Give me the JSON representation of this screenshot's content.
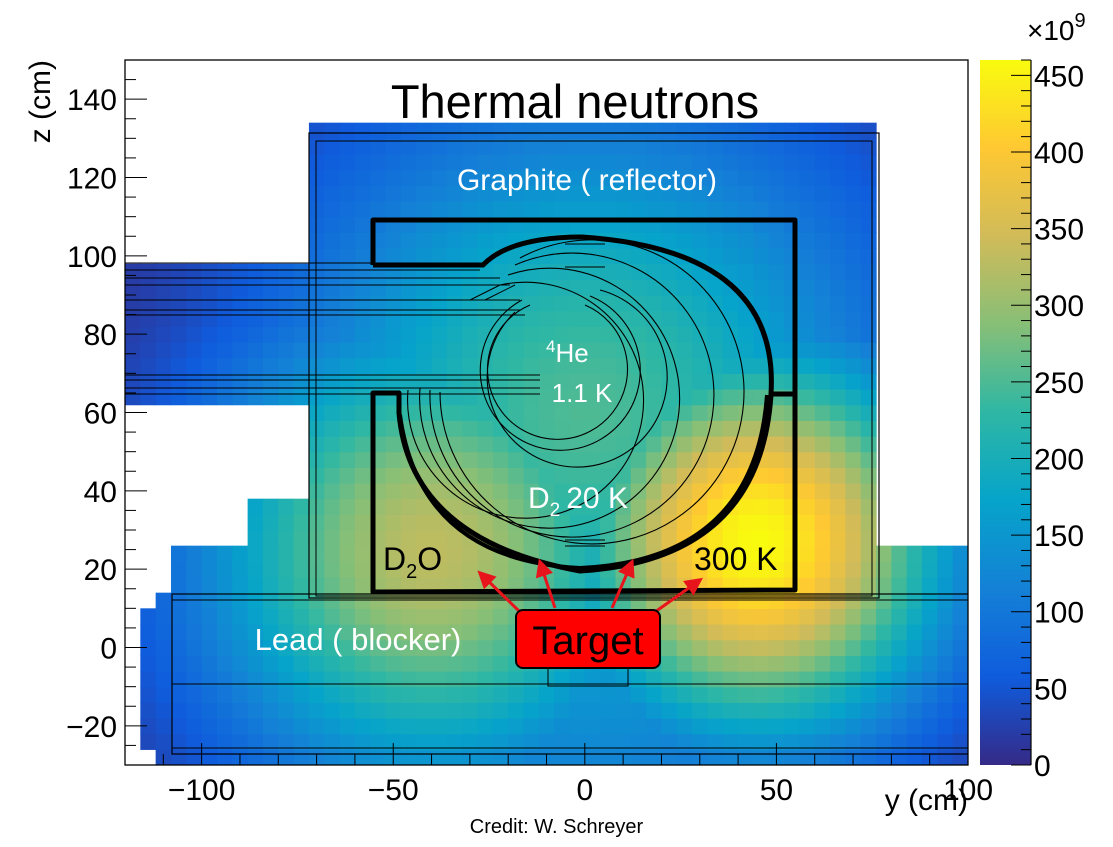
{
  "chart_data": {
    "type": "heatmap",
    "title": "Thermal neutrons",
    "xlabel": "y (cm)",
    "ylabel": "z (cm)",
    "xlim": [
      -120,
      100
    ],
    "ylim": [
      -30,
      150
    ],
    "x_ticks": [
      -100,
      -50,
      0,
      50,
      100
    ],
    "x_tick_labels": [
      "−100",
      "−50",
      "0",
      "50",
      "100"
    ],
    "y_ticks": [
      -20,
      0,
      20,
      40,
      60,
      80,
      100,
      120,
      140
    ],
    "y_tick_labels": [
      "−20",
      "0",
      "20",
      "40",
      "60",
      "80",
      "100",
      "120",
      "140"
    ],
    "colorbar": {
      "min": 0,
      "max": 460,
      "multiplier": "×10",
      "multiplier_exp": "9",
      "ticks": [
        0,
        50,
        100,
        150,
        200,
        250,
        300,
        350,
        400,
        450
      ],
      "tick_labels": [
        "0",
        "50",
        "100",
        "150",
        "200",
        "250",
        "300",
        "350",
        "400",
        "450"
      ],
      "colors": [
        "#352a87",
        "#0f5cdd",
        "#1481d6",
        "#06a4ca",
        "#2eb7a4",
        "#87bf77",
        "#d1bb59",
        "#fec832",
        "#f9fb0e"
      ]
    },
    "hotspots": [
      {
        "y": -40,
        "z": 25,
        "peak": 330,
        "spread": 42
      },
      {
        "y": 45,
        "z": 27,
        "peak": 460,
        "spread": 34
      },
      {
        "y": 0,
        "z": 60,
        "peak": 250,
        "spread": 55
      },
      {
        "y": 0,
        "z": 20,
        "peak": 170,
        "spread": 60
      }
    ],
    "annotations": {
      "graphite": "Graphite ( reflector)",
      "he4_sup": "4",
      "he4_main": "He",
      "he4_temp": "1.1 K",
      "d2_main": "D",
      "d2_sub": "2",
      "d2_temp": "20 K",
      "d2o_main": "D",
      "d2o_sub": "2",
      "d2o_end": "O",
      "warm": "300 K",
      "lead": "Lead ( blocker)",
      "target": "Target"
    },
    "target_color": "#ff0000",
    "arrow_color": "#e8141c"
  },
  "credit": "Credit: W. Schreyer"
}
